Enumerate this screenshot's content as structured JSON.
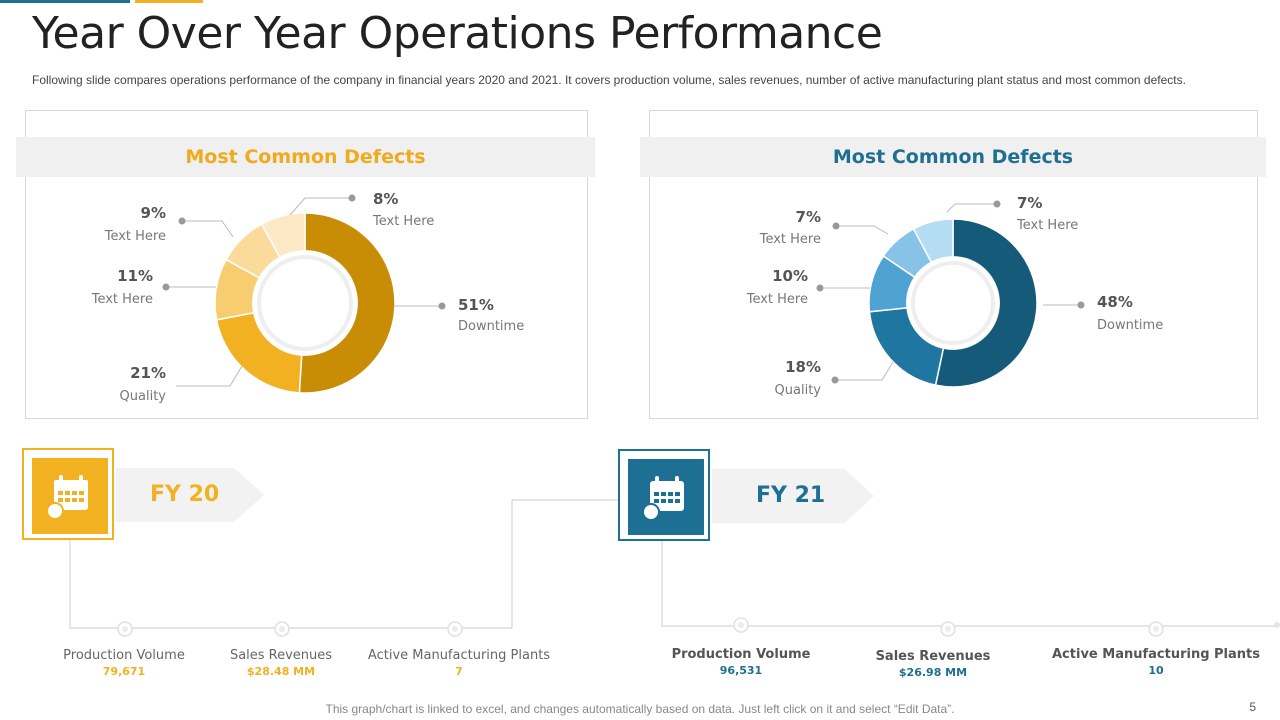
{
  "title": "Year Over Year Operations Performance",
  "subtitle": "Following slide compares operations performance  of the company in financial years 2020 and 2021. It covers  production volume,  sales revenues,  number  of active manufacturing  plant status and most common defects.",
  "colors": {
    "fy20_accent": "#f2b120",
    "fy21_accent": "#1d6f93",
    "fy20_title": "#f0aa1c",
    "fy21_title": "#1f6f93"
  },
  "chart_data": [
    {
      "type": "pie",
      "title": "Most Common Defects",
      "labels": [
        "Downtime",
        "Quality",
        "Text Here",
        "Text Here",
        "Text Here"
      ],
      "values": [
        51,
        21,
        11,
        9,
        8
      ],
      "value_labels": [
        "51%",
        "21%",
        "11%",
        "9%",
        "8%"
      ],
      "slice_colors": [
        "#c98d05",
        "#f2b120",
        "#f7cd70",
        "#fadb9c",
        "#fde8c5"
      ]
    },
    {
      "type": "pie",
      "title": "Most Common Defects",
      "labels": [
        "Downtime",
        "Quality",
        "Text Here",
        "Text Here",
        "Text Here"
      ],
      "values": [
        48,
        18,
        10,
        7,
        7
      ],
      "value_labels": [
        "48%",
        "18%",
        "10%",
        "7%",
        "7%"
      ],
      "slice_colors": [
        "#155a78",
        "#1f77a1",
        "#4fa3d2",
        "#86c3e7",
        "#b4dcf2"
      ]
    }
  ],
  "fy20": {
    "label": "FY 20",
    "icon": "calendar-icon",
    "metrics": [
      {
        "label": "Production Volume",
        "value": "79,671"
      },
      {
        "label": "Sales Revenues",
        "value": "$28.48  MM"
      },
      {
        "label": "Active Manufacturing  Plants",
        "value": "7"
      }
    ]
  },
  "fy21": {
    "label": "FY 21",
    "icon": "calendar-icon",
    "metrics": [
      {
        "label": "Production Volume",
        "value": "96,531"
      },
      {
        "label": "Sales Revenues",
        "value": "$26.98  MM"
      },
      {
        "label": "Active Manufacturing Plants",
        "value": "10"
      }
    ]
  },
  "footer": "This graph/chart is linked to excel, and changes automatically based on data. Just left click on it and select “Edit Data”.",
  "page_number": "5"
}
